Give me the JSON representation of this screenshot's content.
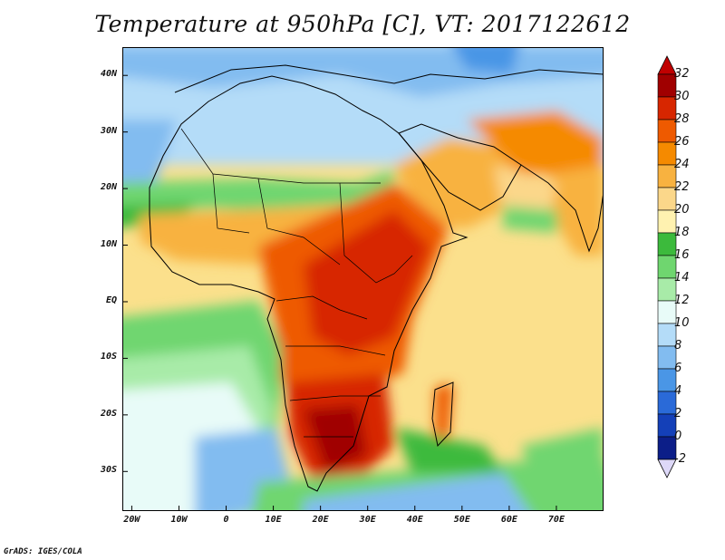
{
  "title": "Temperature at 950hPa [C], VT: 2017122612",
  "credit": "GrADS: IGES/COLA",
  "map": {
    "lon_range": [
      -22,
      80
    ],
    "lat_range": [
      -37,
      45
    ],
    "y_ticks": [
      {
        "lat": 40,
        "label": "40N"
      },
      {
        "lat": 30,
        "label": "30N"
      },
      {
        "lat": 20,
        "label": "20N"
      },
      {
        "lat": 10,
        "label": "10N"
      },
      {
        "lat": 0,
        "label": "EQ"
      },
      {
        "lat": -10,
        "label": "10S"
      },
      {
        "lat": -20,
        "label": "20S"
      },
      {
        "lat": -30,
        "label": "30S"
      }
    ],
    "x_ticks": [
      {
        "lon": -20,
        "label": "20W"
      },
      {
        "lon": -10,
        "label": "10W"
      },
      {
        "lon": 0,
        "label": "0"
      },
      {
        "lon": 10,
        "label": "10E"
      },
      {
        "lon": 20,
        "label": "20E"
      },
      {
        "lon": 30,
        "label": "30E"
      },
      {
        "lon": 40,
        "label": "40E"
      },
      {
        "lon": 50,
        "label": "50E"
      },
      {
        "lon": 60,
        "label": "60E"
      },
      {
        "lon": 70,
        "label": "70E"
      }
    ]
  },
  "colorbar": {
    "labels": [
      "32",
      "30",
      "28",
      "26",
      "24",
      "22",
      "20",
      "18",
      "16",
      "14",
      "12",
      "10",
      "8",
      "6",
      "4",
      "2",
      "0",
      "-2"
    ],
    "colors": [
      "#a00000",
      "#d72600",
      "#ee5a00",
      "#f58a00",
      "#f8b240",
      "#fbd78a",
      "#fff2b0",
      "#3cba3c",
      "#6fd66f",
      "#a8eba8",
      "#e8fbf8",
      "#b4dcf8",
      "#82bcf0",
      "#4a96e6",
      "#2a6ad8",
      "#1440b8",
      "#0c1e88",
      "#d8d0f4"
    ],
    "top_arrow_color": "#c00000",
    "bottom_arrow_color": "#ddd8f8"
  },
  "colors": {
    "ocean_default": "#fbe08c",
    "north_cool": "#b4dcf8",
    "band_green": "#6fd66f",
    "hot_core": "#d72600",
    "very_hot": "#a00000",
    "south_ocean": "#82bcf0"
  }
}
